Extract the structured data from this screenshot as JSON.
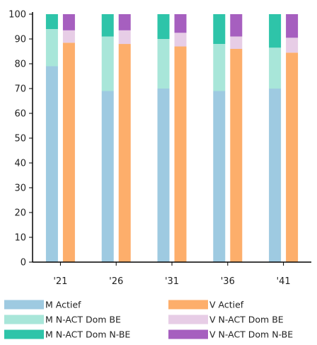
{
  "chart_data": {
    "type": "bar",
    "stacked": true,
    "categories": [
      "'21",
      "'26",
      "'31",
      "'36",
      "'41"
    ],
    "ylim": [
      0,
      100
    ],
    "yticks": [
      0,
      10,
      20,
      30,
      40,
      50,
      60,
      70,
      80,
      90,
      100
    ],
    "grid": false,
    "legend_position": "bottom",
    "groups": [
      {
        "name": "M",
        "series": [
          {
            "name": "M Actief",
            "color": "#9ecae1",
            "values": [
              79,
              69,
              70,
              69,
              70
            ]
          },
          {
            "name": "M N-ACT Dom BE",
            "color": "#a8e6d9",
            "values": [
              15,
              22,
              20,
              19,
              16.5
            ]
          },
          {
            "name": "M N-ACT Dom N-BE",
            "color": "#2ec4a9",
            "values": [
              6,
              9,
              10,
              12,
              13.5
            ]
          }
        ]
      },
      {
        "name": "V",
        "series": [
          {
            "name": "V Actief",
            "color": "#fdae6b",
            "values": [
              88.5,
              88,
              87,
              86,
              84.5
            ]
          },
          {
            "name": "V N-ACT Dom BE",
            "color": "#e7cde6",
            "values": [
              5,
              5.5,
              5.5,
              5,
              6
            ]
          },
          {
            "name": "V N-ACT Dom N-BE",
            "color": "#a65fbf",
            "values": [
              6.5,
              6.5,
              7.5,
              9,
              9.5
            ]
          }
        ]
      }
    ],
    "legend": [
      "M Actief",
      "V Actief",
      "M N-ACT Dom BE",
      "V N-ACT Dom BE",
      "M N-ACT Dom N-BE",
      "V N-ACT Dom N-BE"
    ]
  }
}
